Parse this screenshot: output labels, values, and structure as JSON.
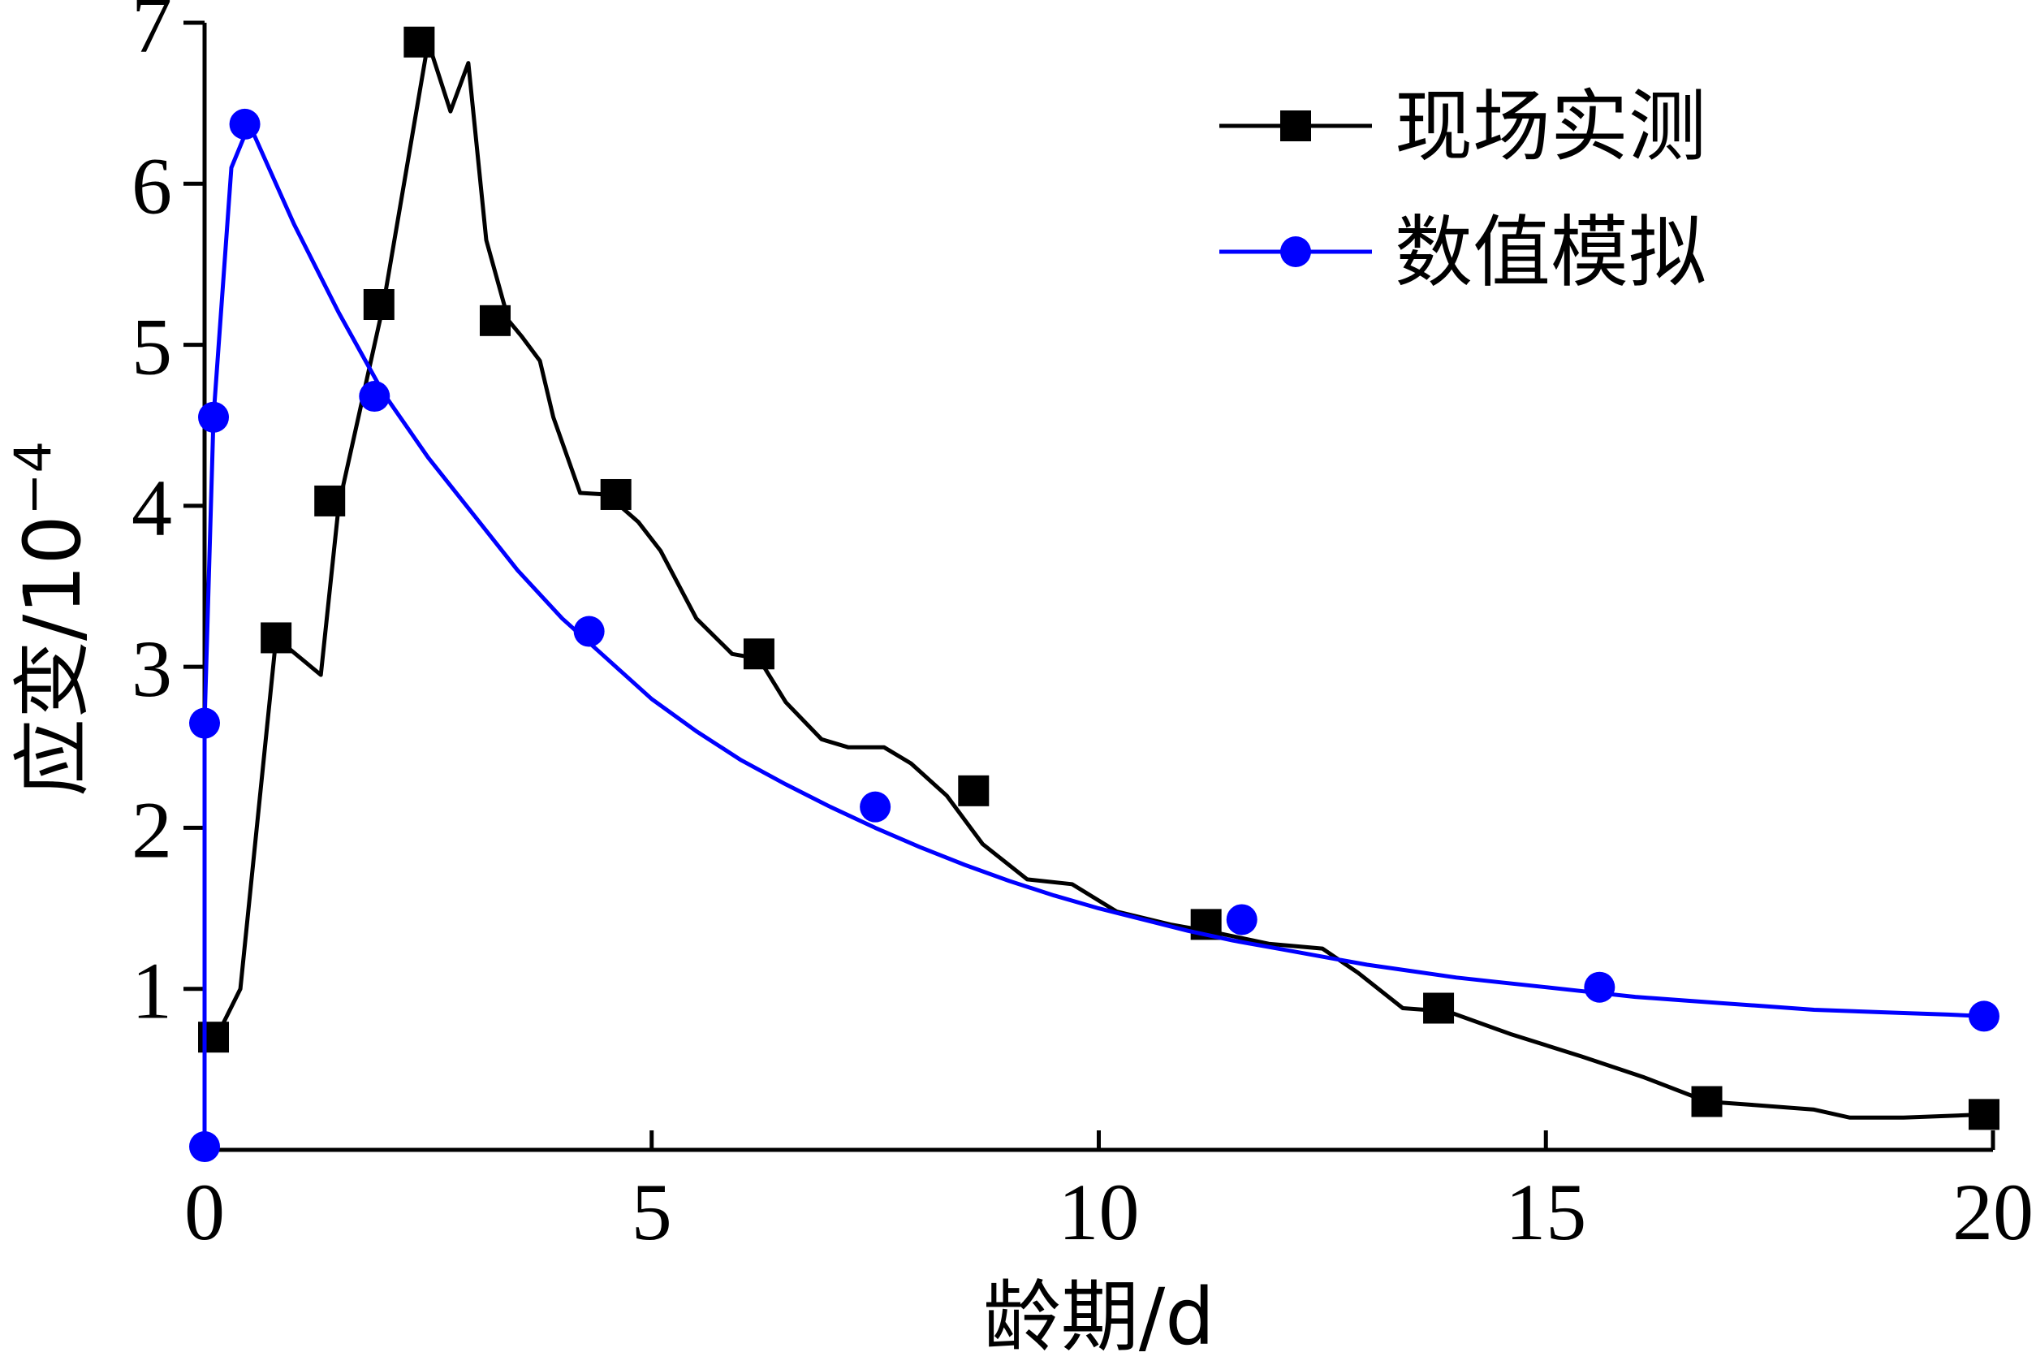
{
  "chart_data": {
    "type": "line",
    "xlabel": "龄期/d",
    "ylabel": "应变/10",
    "ylabel_exponent": "−4",
    "xlim": [
      0,
      20
    ],
    "ylim": [
      0,
      7
    ],
    "xticks": [
      "0",
      "5",
      "10",
      "15",
      "20"
    ],
    "yticks": [
      "1",
      "2",
      "3",
      "4",
      "5",
      "6",
      "7"
    ],
    "legend_position": "top-right",
    "grid": false,
    "series": [
      {
        "name": "现场实测",
        "color": "#000000",
        "marker": "square",
        "x": [
          0.1,
          0.15,
          0.4,
          0.8,
          1.3,
          1.5,
          1.7,
          2.0,
          2.2,
          2.5,
          2.75,
          2.95,
          3.15,
          3.4,
          3.55,
          3.75,
          3.9,
          4.2,
          4.5,
          4.85,
          5.1,
          5.5,
          5.9,
          6.2,
          6.5,
          6.9,
          7.2,
          7.6,
          7.9,
          8.3,
          8.7,
          9.2,
          9.7,
          10.2,
          10.8,
          11.3,
          11.9,
          12.5,
          12.9,
          13.4,
          13.9,
          14.6,
          15.4,
          16.1,
          16.8,
          17.3,
          18.0,
          18.4,
          19.0,
          19.9
        ],
        "y": [
          0.7,
          0.72,
          1.0,
          3.18,
          2.95,
          4.0,
          4.5,
          5.25,
          5.9,
          6.88,
          6.45,
          6.75,
          5.65,
          5.15,
          5.05,
          4.9,
          4.55,
          4.08,
          4.07,
          3.9,
          3.72,
          3.3,
          3.08,
          3.05,
          2.78,
          2.55,
          2.5,
          2.5,
          2.4,
          2.2,
          1.9,
          1.68,
          1.65,
          1.48,
          1.4,
          1.35,
          1.28,
          1.25,
          1.1,
          0.88,
          0.86,
          0.72,
          0.58,
          0.45,
          0.3,
          0.28,
          0.25,
          0.2,
          0.2,
          0.22
        ],
        "marker_x": [
          0.1,
          0.8,
          1.4,
          1.95,
          2.4,
          3.25,
          4.6,
          6.2,
          8.6,
          11.2,
          13.8,
          16.8,
          19.9
        ],
        "marker_y": [
          0.7,
          3.18,
          4.03,
          5.25,
          6.88,
          5.15,
          4.07,
          3.08,
          2.23,
          1.4,
          0.88,
          0.3,
          0.22
        ]
      },
      {
        "name": "数值模拟",
        "color": "#0000ff",
        "marker": "circle",
        "x": [
          0.0,
          0.0,
          0.1,
          0.3,
          0.5,
          1.0,
          1.5,
          2.0,
          2.5,
          3.0,
          3.5,
          4.0,
          4.5,
          5.0,
          5.5,
          6.0,
          6.5,
          7.0,
          7.5,
          8.0,
          8.5,
          9.0,
          9.5,
          10.0,
          10.5,
          11.0,
          11.5,
          12.0,
          12.5,
          13.0,
          13.5,
          14.0,
          14.5,
          15.0,
          15.5,
          16.0,
          16.5,
          17.0,
          17.5,
          18.0,
          18.5,
          19.0,
          19.5,
          19.9
        ],
        "y": [
          0.02,
          2.65,
          4.55,
          6.1,
          6.37,
          5.75,
          5.2,
          4.7,
          4.3,
          3.95,
          3.6,
          3.3,
          3.05,
          2.8,
          2.6,
          2.42,
          2.27,
          2.13,
          2.0,
          1.88,
          1.77,
          1.67,
          1.58,
          1.5,
          1.43,
          1.36,
          1.3,
          1.25,
          1.2,
          1.15,
          1.11,
          1.07,
          1.04,
          1.01,
          0.98,
          0.95,
          0.93,
          0.91,
          0.89,
          0.87,
          0.86,
          0.85,
          0.84,
          0.83
        ],
        "marker_x": [
          0.0,
          0.0,
          0.1,
          0.45,
          1.9,
          4.3,
          7.5,
          11.6,
          15.6,
          19.9
        ],
        "marker_y": [
          0.02,
          2.65,
          4.55,
          6.37,
          4.68,
          3.22,
          2.13,
          1.43,
          1.01,
          0.83
        ]
      }
    ]
  }
}
